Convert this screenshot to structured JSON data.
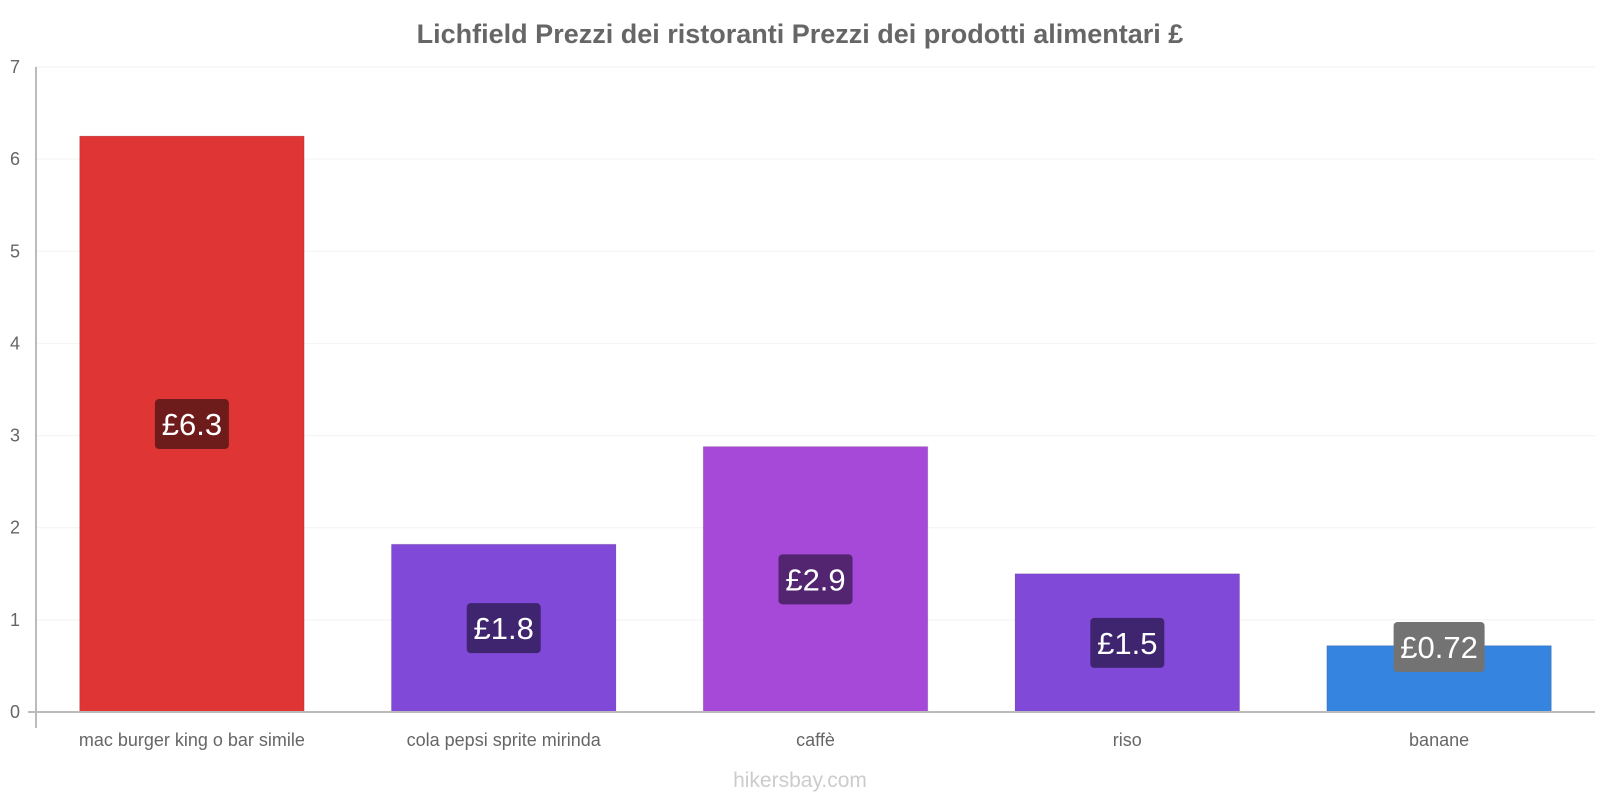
{
  "chart_data": {
    "type": "bar",
    "title": "Lichfield Prezzi dei ristoranti Prezzi dei prodotti alimentari £",
    "categories": [
      "mac burger king o bar simile",
      "cola pepsi sprite mirinda",
      "caffè",
      "riso",
      "banane"
    ],
    "values": [
      6.25,
      1.82,
      2.88,
      1.5,
      0.72
    ],
    "data_labels": [
      "£6.3",
      "£1.8",
      "£2.9",
      "£1.5",
      "£0.72"
    ],
    "bar_colors": [
      "#e03535",
      "#8049d8",
      "#a749d8",
      "#8049d8",
      "#3584e0"
    ],
    "label_bg_colors": [
      "#6e1b1b",
      "#3f2570",
      "#532570",
      "#3f2570",
      "#737373"
    ],
    "yticks": [
      "0",
      "1",
      "2",
      "3",
      "4",
      "5",
      "6",
      "7"
    ],
    "ylim": [
      0,
      7
    ],
    "xlabel": "",
    "ylabel": "",
    "grid": true
  },
  "watermark": "hikersbay.com"
}
